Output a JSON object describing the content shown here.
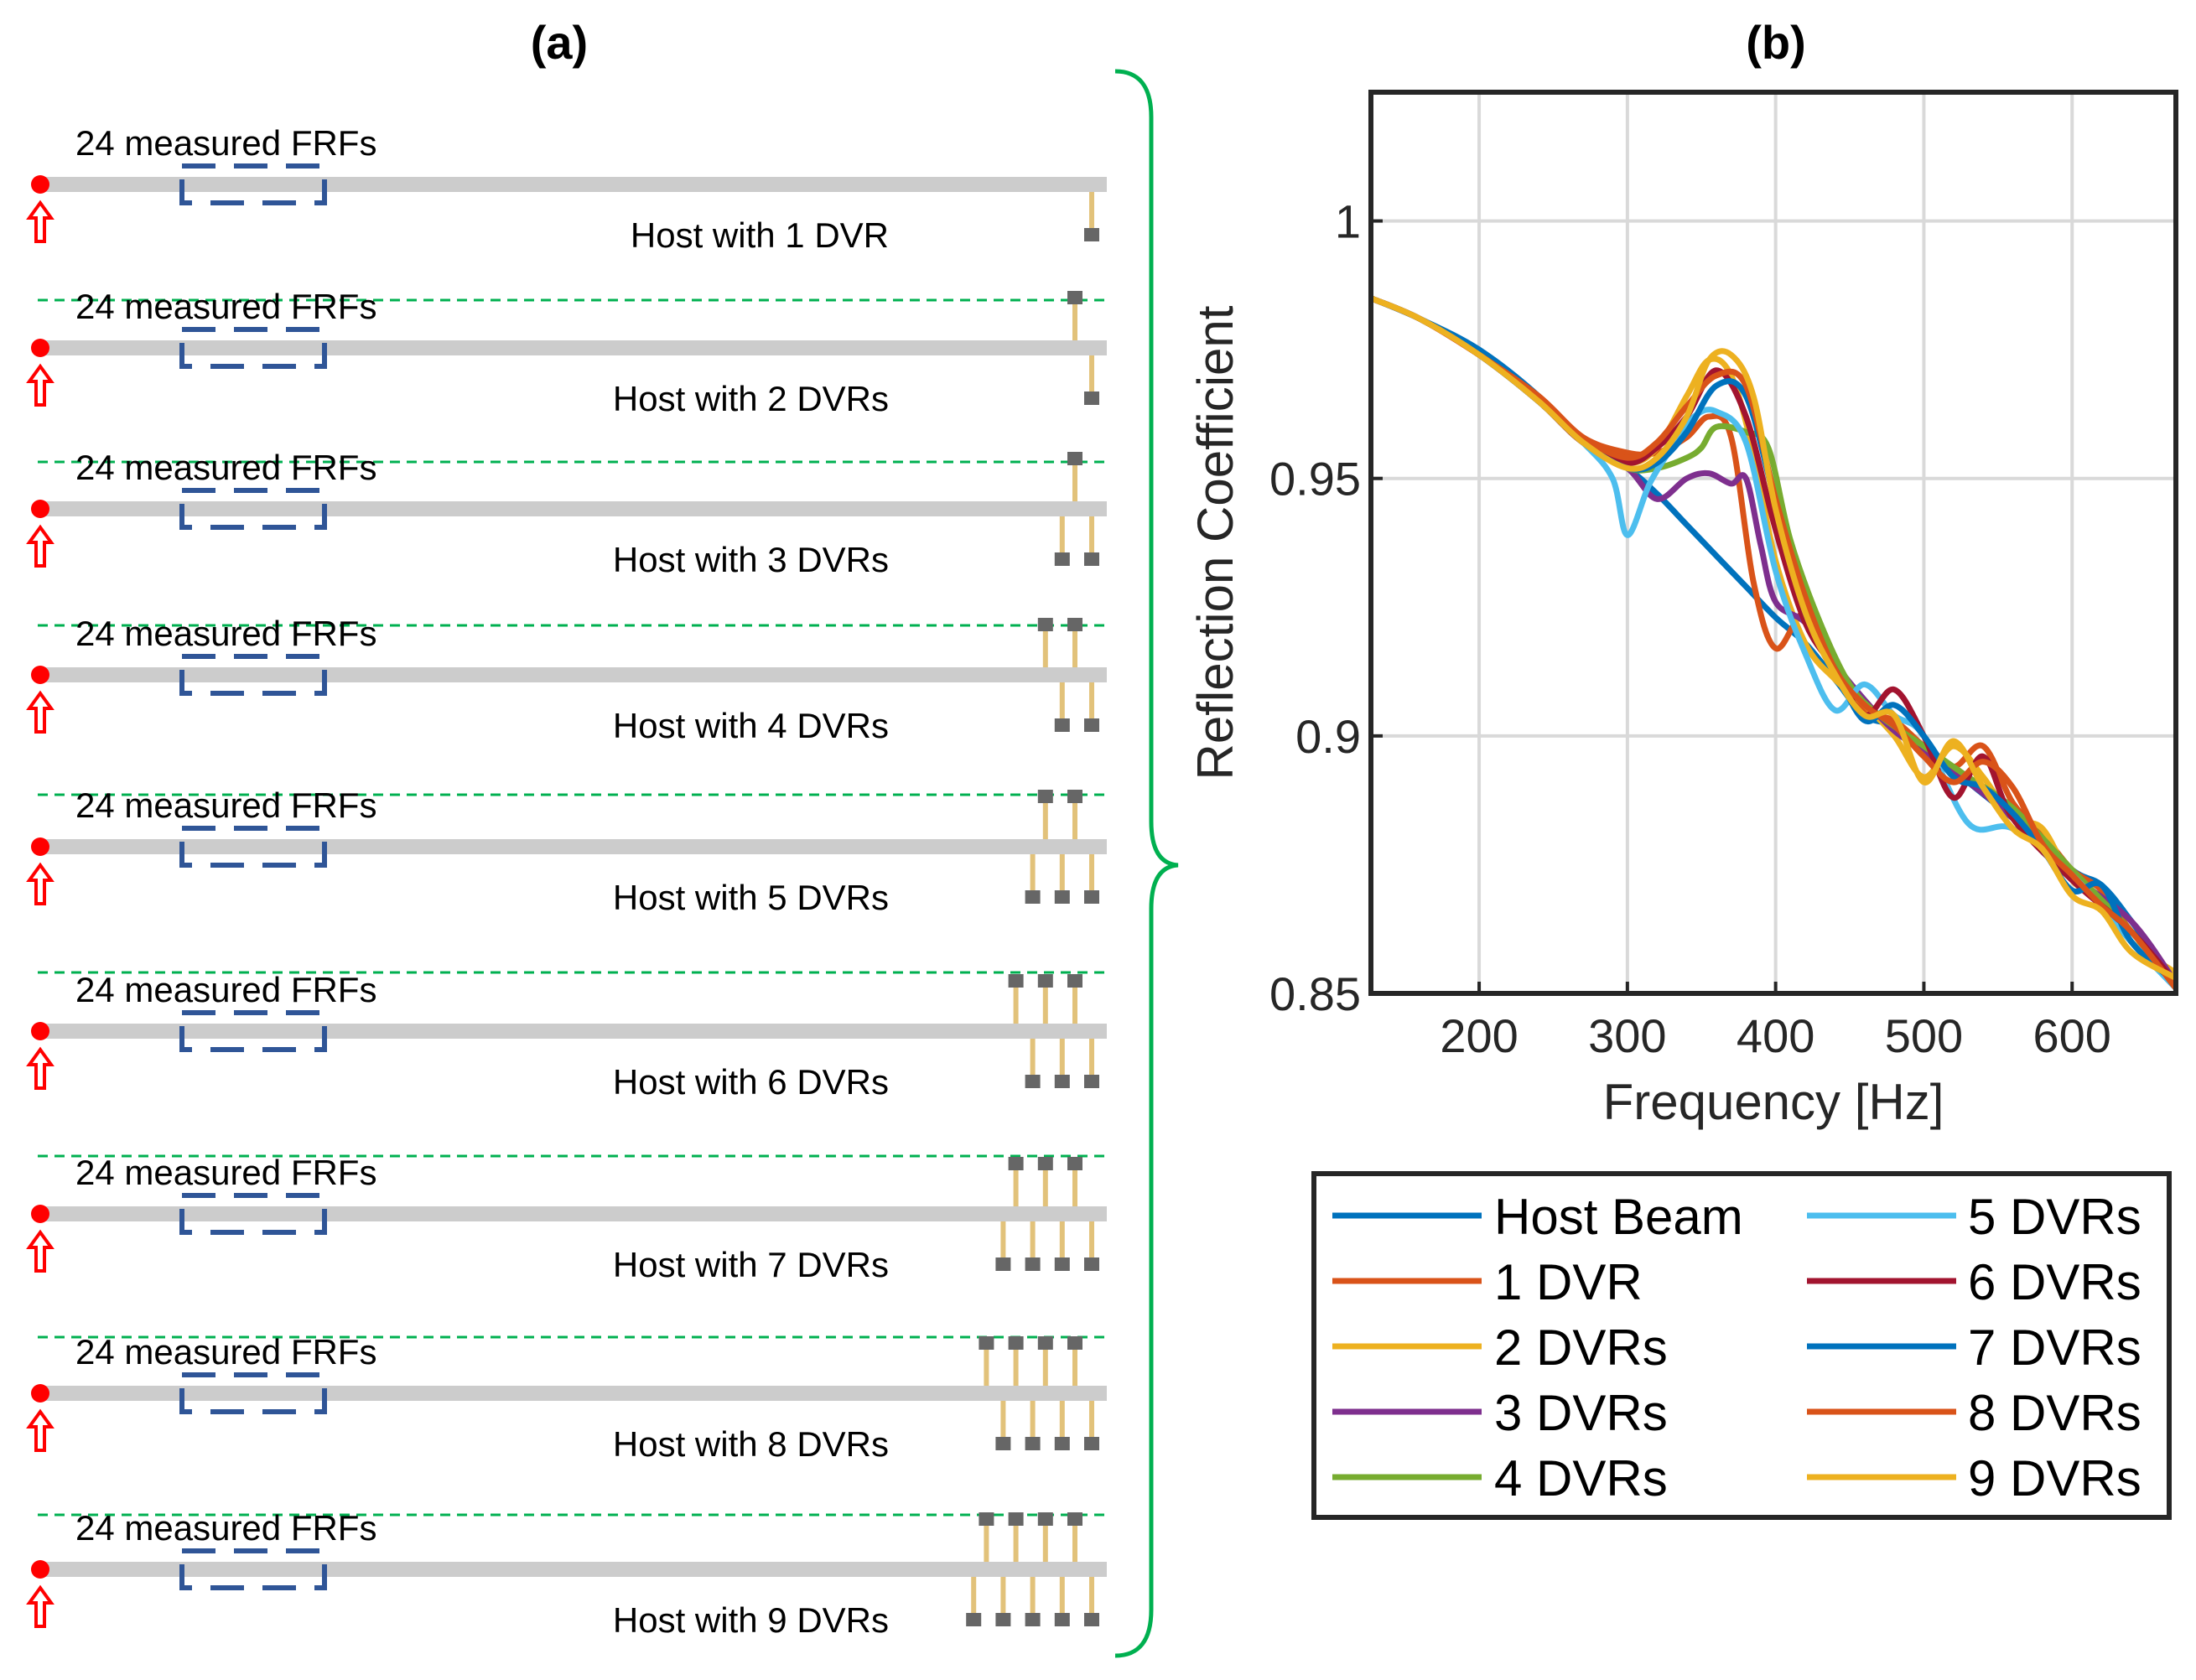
{
  "panel_a": {
    "label": "(a)",
    "rows": [
      {
        "frf_label": "24 measured FRFs",
        "host_label": "Host with 1 DVR",
        "dvrs": 1
      },
      {
        "frf_label": "24 measured FRFs",
        "host_label": "Host with 2 DVRs",
        "dvrs": 2
      },
      {
        "frf_label": "24 measured FRFs",
        "host_label": "Host with 3 DVRs",
        "dvrs": 3
      },
      {
        "frf_label": "24 measured FRFs",
        "host_label": "Host with 4 DVRs",
        "dvrs": 4
      },
      {
        "frf_label": "24 measured FRFs",
        "host_label": "Host with 5 DVRs",
        "dvrs": 5
      },
      {
        "frf_label": "24 measured FRFs",
        "host_label": "Host with 6 DVRs",
        "dvrs": 6
      },
      {
        "frf_label": "24 measured FRFs",
        "host_label": "Host with 7 DVRs",
        "dvrs": 7
      },
      {
        "frf_label": "24 measured FRFs",
        "host_label": "Host with 8 DVRs",
        "dvrs": 8
      },
      {
        "frf_label": "24 measured FRFs",
        "host_label": "Host with 9 DVRs",
        "dvrs": 9
      }
    ],
    "colors": {
      "beam": "#cccccc",
      "excitation": "#ff0000",
      "sensor_box": "#2f5597",
      "separator": "#00b050",
      "brace": "#00b050",
      "dvr_rod": "#e2c27a",
      "dvr_mass": "#666666"
    }
  },
  "panel_b": {
    "label": "(b)"
  },
  "chart_data": {
    "type": "line",
    "title": "",
    "xlabel": "Frequency [Hz]",
    "ylabel": "Reflection Coefficient",
    "xlim": [
      127,
      670
    ],
    "ylim": [
      0.85,
      1.025
    ],
    "xticks": [
      200,
      300,
      400,
      500,
      600
    ],
    "yticks": [
      0.85,
      0.9,
      0.95,
      1.0
    ],
    "xtick_labels": [
      "200",
      "300",
      "400",
      "500",
      "600"
    ],
    "ytick_labels": [
      "0.85",
      "0.9",
      "0.95",
      "1"
    ],
    "grid": true,
    "legend_location": "below-plot",
    "series": [
      {
        "name": "Host Beam",
        "color": "#0072BD",
        "x": [
          127,
          160,
          200,
          240,
          270,
          300,
          320,
          340,
          360,
          380,
          400,
          420,
          440,
          460,
          480,
          500,
          530,
          560,
          600,
          620,
          640,
          670
        ],
        "y": [
          0.985,
          0.981,
          0.975,
          0.966,
          0.957,
          0.952,
          0.947,
          0.941,
          0.935,
          0.929,
          0.923,
          0.918,
          0.911,
          0.904,
          0.902,
          0.898,
          0.891,
          0.884,
          0.874,
          0.871,
          0.864,
          0.852
        ]
      },
      {
        "name": "1 DVR",
        "color": "#D95319",
        "x": [
          127,
          160,
          200,
          240,
          270,
          300,
          320,
          340,
          355,
          370,
          385,
          400,
          420,
          440,
          460,
          480,
          500,
          520,
          540,
          560,
          580,
          600,
          620,
          640,
          670
        ],
        "y": [
          0.985,
          0.981,
          0.974,
          0.966,
          0.958,
          0.955,
          0.955,
          0.958,
          0.962,
          0.958,
          0.93,
          0.917,
          0.924,
          0.915,
          0.905,
          0.903,
          0.898,
          0.894,
          0.898,
          0.887,
          0.881,
          0.874,
          0.87,
          0.862,
          0.853
        ]
      },
      {
        "name": "2 DVRs",
        "color": "#EDB120",
        "x": [
          127,
          160,
          200,
          240,
          270,
          300,
          320,
          340,
          355,
          370,
          385,
          400,
          420,
          440,
          460,
          480,
          500,
          520,
          540,
          560,
          580,
          600,
          620,
          640,
          670
        ],
        "y": [
          0.985,
          0.981,
          0.974,
          0.965,
          0.957,
          0.953,
          0.956,
          0.966,
          0.973,
          0.97,
          0.955,
          0.934,
          0.918,
          0.911,
          0.906,
          0.9,
          0.892,
          0.898,
          0.892,
          0.884,
          0.882,
          0.872,
          0.868,
          0.86,
          0.854
        ]
      },
      {
        "name": "3 DVRs",
        "color": "#7E2F8E",
        "x": [
          127,
          160,
          200,
          240,
          270,
          300,
          320,
          340,
          355,
          370,
          380,
          390,
          400,
          420,
          440,
          460,
          480,
          500,
          530,
          560,
          600,
          640,
          670
        ],
        "y": [
          0.985,
          0.981,
          0.974,
          0.965,
          0.957,
          0.952,
          0.946,
          0.95,
          0.951,
          0.949,
          0.95,
          0.937,
          0.926,
          0.922,
          0.914,
          0.907,
          0.901,
          0.897,
          0.891,
          0.884,
          0.873,
          0.864,
          0.852
        ]
      },
      {
        "name": "4 DVRs",
        "color": "#77AC30",
        "x": [
          127,
          160,
          200,
          240,
          270,
          300,
          320,
          340,
          350,
          360,
          380,
          395,
          410,
          430,
          450,
          470,
          500,
          530,
          560,
          600,
          640,
          670
        ],
        "y": [
          0.985,
          0.981,
          0.974,
          0.965,
          0.957,
          0.952,
          0.952,
          0.954,
          0.956,
          0.96,
          0.959,
          0.956,
          0.938,
          0.922,
          0.91,
          0.904,
          0.898,
          0.892,
          0.886,
          0.874,
          0.862,
          0.851
        ]
      },
      {
        "name": "5 DVRs",
        "color": "#4DBEEE",
        "x": [
          127,
          160,
          200,
          240,
          270,
          290,
          300,
          315,
          330,
          345,
          360,
          380,
          400,
          420,
          440,
          460,
          480,
          500,
          530,
          560,
          600,
          640,
          670
        ],
        "y": [
          0.985,
          0.981,
          0.974,
          0.965,
          0.957,
          0.95,
          0.939,
          0.949,
          0.956,
          0.962,
          0.963,
          0.957,
          0.932,
          0.916,
          0.905,
          0.91,
          0.904,
          0.9,
          0.883,
          0.882,
          0.873,
          0.86,
          0.851
        ]
      },
      {
        "name": "6 DVRs",
        "color": "#A2142F",
        "x": [
          127,
          160,
          200,
          240,
          270,
          300,
          320,
          340,
          360,
          380,
          400,
          420,
          440,
          460,
          480,
          500,
          520,
          540,
          560,
          600,
          640,
          670
        ],
        "y": [
          0.985,
          0.981,
          0.974,
          0.965,
          0.957,
          0.953,
          0.956,
          0.962,
          0.971,
          0.962,
          0.94,
          0.922,
          0.913,
          0.904,
          0.909,
          0.9,
          0.888,
          0.896,
          0.884,
          0.872,
          0.862,
          0.852
        ]
      },
      {
        "name": "7 DVRs",
        "color": "#0072BD",
        "x": [
          127,
          160,
          200,
          240,
          270,
          300,
          320,
          340,
          360,
          380,
          400,
          420,
          440,
          460,
          480,
          500,
          520,
          540,
          560,
          580,
          600,
          620,
          640,
          670
        ],
        "y": [
          0.985,
          0.981,
          0.974,
          0.965,
          0.957,
          0.952,
          0.953,
          0.959,
          0.968,
          0.966,
          0.945,
          0.924,
          0.913,
          0.903,
          0.906,
          0.9,
          0.892,
          0.89,
          0.885,
          0.878,
          0.87,
          0.871,
          0.86,
          0.852
        ]
      },
      {
        "name": "8 DVRs",
        "color": "#D95319",
        "x": [
          127,
          160,
          200,
          240,
          270,
          300,
          320,
          340,
          360,
          380,
          400,
          420,
          440,
          460,
          480,
          500,
          520,
          540,
          560,
          580,
          600,
          620,
          640,
          670
        ],
        "y": [
          0.985,
          0.981,
          0.974,
          0.966,
          0.958,
          0.954,
          0.957,
          0.964,
          0.97,
          0.968,
          0.946,
          0.927,
          0.913,
          0.906,
          0.902,
          0.896,
          0.891,
          0.895,
          0.89,
          0.879,
          0.873,
          0.867,
          0.862,
          0.851
        ]
      },
      {
        "name": "9 DVRs",
        "color": "#EDB120",
        "x": [
          127,
          160,
          200,
          240,
          270,
          300,
          320,
          340,
          355,
          370,
          385,
          400,
          420,
          440,
          460,
          480,
          500,
          520,
          540,
          560,
          580,
          600,
          620,
          640,
          670
        ],
        "y": [
          0.985,
          0.981,
          0.974,
          0.965,
          0.957,
          0.952,
          0.954,
          0.962,
          0.973,
          0.974,
          0.966,
          0.944,
          0.924,
          0.912,
          0.904,
          0.904,
          0.891,
          0.899,
          0.89,
          0.882,
          0.878,
          0.869,
          0.866,
          0.858,
          0.853
        ]
      }
    ]
  }
}
